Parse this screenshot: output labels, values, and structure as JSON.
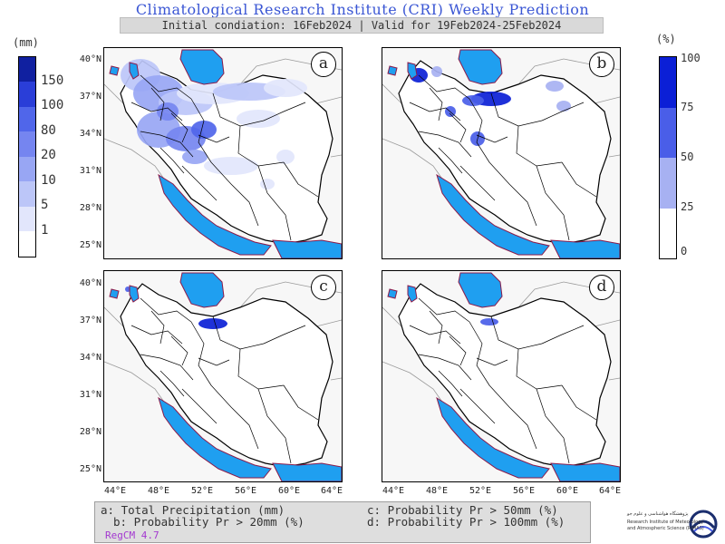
{
  "header": {
    "title": "Climatological Research Institute (CRI) Weekly Prediction",
    "subtitle": "Initial condiation: 16Feb2024 | Valid for 19Feb2024-25Feb2024"
  },
  "axes": {
    "lat_labels": [
      "40°N",
      "37°N",
      "34°N",
      "31°N",
      "28°N",
      "25°N"
    ],
    "lon_labels": [
      "44°E",
      "48°E",
      "52°E",
      "56°E",
      "60°E",
      "64°E"
    ]
  },
  "panels": [
    {
      "label": "a"
    },
    {
      "label": "b"
    },
    {
      "label": "c"
    },
    {
      "label": "d"
    }
  ],
  "colorbar_left": {
    "unit": "(mm)",
    "labels": [
      "150",
      "100",
      "80",
      "20",
      "10",
      "5",
      "1"
    ],
    "colors": [
      "#1020a0",
      "#2a3ed8",
      "#5066ea",
      "#7585f0",
      "#98a6f4",
      "#bcc6f8",
      "#e2e6fc",
      "#ffffff"
    ]
  },
  "colorbar_right": {
    "unit": "(%)",
    "labels": [
      "100",
      "75",
      "50",
      "25",
      "0"
    ],
    "colors": [
      "#0b1fd6",
      "#4a5ee8",
      "#a7b1f2",
      "#ffffff"
    ]
  },
  "legend": {
    "items": [
      "a: Total Precipitation (mm)",
      "b: Probability Pr > 20mm (%)",
      "c: Probability Pr > 50mm (%)",
      "d: Probability Pr > 100mm (%)"
    ],
    "model": "RegCM 4.7"
  },
  "logo": {
    "line1": "پژوهشگاه هواشناسی و علوم جو",
    "line2": "Research Institute of Meteorology",
    "line3": "and Atmospheric Science (RIMAS)"
  },
  "colors": {
    "sea": "#1f9ff0",
    "coast": "#8b1a4a",
    "land": "#ffffff",
    "outside": "#f7f7f7"
  }
}
